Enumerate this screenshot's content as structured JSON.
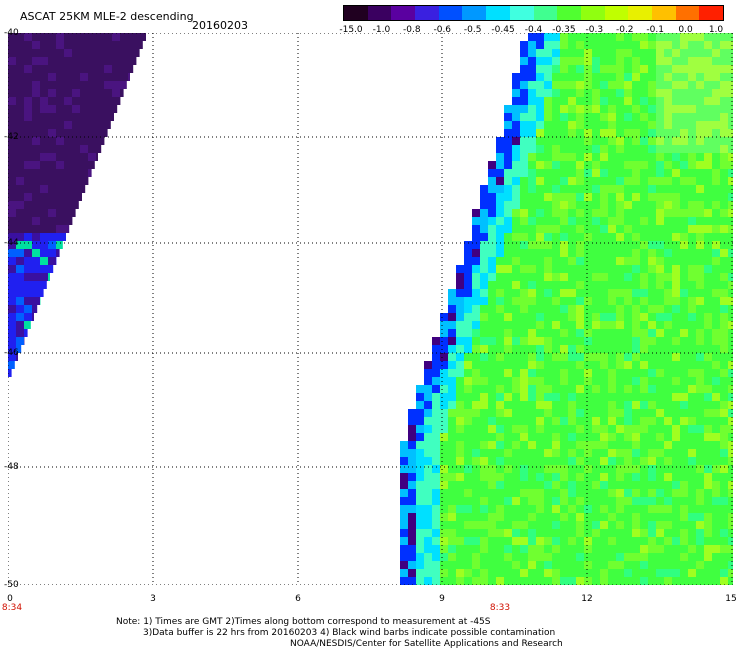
{
  "header": {
    "title": "ASCAT 25KM MLE-2 descending",
    "date": "20160203"
  },
  "colorbar": {
    "colors": [
      "#200020",
      "#3a0060",
      "#5a00a0",
      "#3a20e0",
      "#0050ff",
      "#0098ff",
      "#00e0ff",
      "#40ffe0",
      "#40ff90",
      "#50ff30",
      "#90ff10",
      "#c0ff00",
      "#e8f000",
      "#ffc000",
      "#ff7000",
      "#ff2000"
    ],
    "labels": [
      "-15.0",
      "-1.0",
      "-0.8",
      "-0.6",
      "-0.5",
      "-0.45",
      "-0.4",
      "-0.35",
      "-0.3",
      "-0.2",
      "-0.1",
      "0.0",
      "1.0"
    ]
  },
  "axes": {
    "x_ticks": [
      "0",
      "3",
      "6",
      "9",
      "12",
      "15"
    ],
    "y_ticks": [
      "-40",
      "-42",
      "-44",
      "-46",
      "-48",
      "-50"
    ],
    "time_labels": [
      "8:34",
      "8:33"
    ]
  },
  "notes": {
    "line1": "Note: 1) Times are GMT 2)Times along bottom correspond to measurement at -45S",
    "line2": "3)Data buffer is 22 hrs from 20160203 4) Black wind barbs indicate possible contamination",
    "line3": "NOAA/NESDIS/Center for Satellite Applications and Research"
  },
  "legend_colors": {
    "west_swath_dark": "#3a1060",
    "west_swath_blue": "#2020f0",
    "east_swath_green": "#40ff40",
    "east_swath_yellowgreen": "#a0ff20",
    "east_swath_cyan": "#00f0f0",
    "gridline": "#000000",
    "time_label": "#d01000"
  }
}
